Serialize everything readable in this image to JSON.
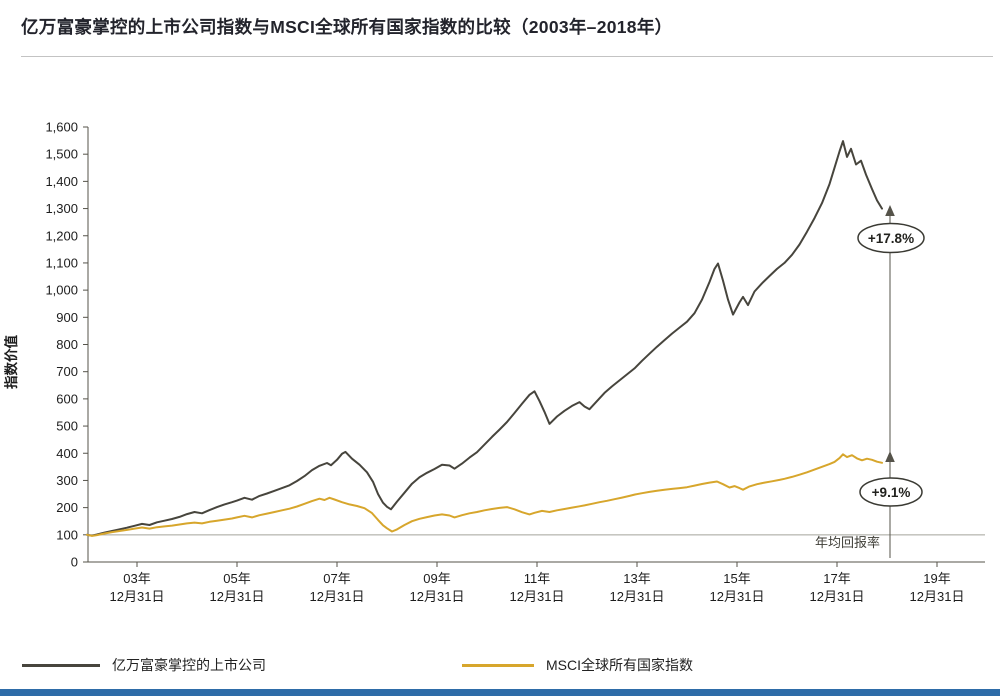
{
  "page": {
    "title": "亿万富豪掌控的上市公司指数与MSCI全球所有国家指数的比较（2003年–2018年）"
  },
  "colors": {
    "billionaire_line": "#47453d",
    "msci_line": "#d7a62c",
    "axis": "#55534a",
    "baseline_100": "#a3a39b",
    "footer_bar": "#2e6ca8",
    "annotation_border": "#3a3a33"
  },
  "chart_data": {
    "type": "line",
    "title": "亿万富豪掌控的上市公司指数与MSCI全球所有国家指数的比较（2003年–2018年）",
    "xlabel": "",
    "ylabel": "指数价值",
    "ylim": [
      0,
      1600
    ],
    "y_tick_step": 100,
    "grid": "baseline at 100 only",
    "legend_position": "bottom",
    "y_tick_labels": [
      "0",
      "100",
      "200",
      "300",
      "400",
      "500",
      "600",
      "700",
      "800",
      "900",
      "1,000",
      "1,100",
      "1,200",
      "1,300",
      "1,400",
      "1,500",
      "1,600"
    ],
    "x_ticks": [
      {
        "top": "03年",
        "bottom": "12月31日"
      },
      {
        "top": "05年",
        "bottom": "12月31日"
      },
      {
        "top": "07年",
        "bottom": "12月31日"
      },
      {
        "top": "09年",
        "bottom": "12月31日"
      },
      {
        "top": "11年",
        "bottom": "12月31日"
      },
      {
        "top": "13年",
        "bottom": "12月31日"
      },
      {
        "top": "15年",
        "bottom": "12月31日"
      },
      {
        "top": "17年",
        "bottom": "12月31日"
      },
      {
        "top": "19年",
        "bottom": "12月31日"
      }
    ],
    "annotations": {
      "billionaire_return": "+17.8%",
      "msci_return": "+9.1%",
      "axis_note": "年均回报率"
    },
    "series": [
      {
        "key": "billionaire",
        "name": "亿万富豪掌控的上市公司",
        "color": "#47453d",
        "points": [
          [
            2003.0,
            100
          ],
          [
            2003.1,
            97
          ],
          [
            2003.2,
            101
          ],
          [
            2003.35,
            108
          ],
          [
            2003.5,
            114
          ],
          [
            2003.65,
            120
          ],
          [
            2003.8,
            126
          ],
          [
            2003.95,
            133
          ],
          [
            2004.1,
            140
          ],
          [
            2004.25,
            136
          ],
          [
            2004.4,
            146
          ],
          [
            2004.55,
            152
          ],
          [
            2004.7,
            158
          ],
          [
            2004.85,
            166
          ],
          [
            2005.0,
            176
          ],
          [
            2005.15,
            184
          ],
          [
            2005.3,
            179
          ],
          [
            2005.45,
            191
          ],
          [
            2005.6,
            202
          ],
          [
            2005.75,
            212
          ],
          [
            2005.9,
            220
          ],
          [
            2006.0,
            226
          ],
          [
            2006.15,
            236
          ],
          [
            2006.3,
            229
          ],
          [
            2006.45,
            243
          ],
          [
            2006.6,
            252
          ],
          [
            2006.75,
            262
          ],
          [
            2006.9,
            272
          ],
          [
            2007.05,
            282
          ],
          [
            2007.2,
            298
          ],
          [
            2007.35,
            316
          ],
          [
            2007.5,
            338
          ],
          [
            2007.65,
            354
          ],
          [
            2007.8,
            364
          ],
          [
            2007.88,
            356
          ],
          [
            2008.0,
            376
          ],
          [
            2008.1,
            398
          ],
          [
            2008.17,
            405
          ],
          [
            2008.3,
            380
          ],
          [
            2008.45,
            358
          ],
          [
            2008.6,
            330
          ],
          [
            2008.72,
            295
          ],
          [
            2008.82,
            250
          ],
          [
            2008.92,
            218
          ],
          [
            2009.0,
            203
          ],
          [
            2009.08,
            194
          ],
          [
            2009.2,
            222
          ],
          [
            2009.35,
            255
          ],
          [
            2009.5,
            288
          ],
          [
            2009.65,
            312
          ],
          [
            2009.8,
            328
          ],
          [
            2009.95,
            342
          ],
          [
            2010.1,
            358
          ],
          [
            2010.25,
            355
          ],
          [
            2010.35,
            343
          ],
          [
            2010.5,
            362
          ],
          [
            2010.65,
            384
          ],
          [
            2010.8,
            404
          ],
          [
            2010.95,
            432
          ],
          [
            2011.1,
            460
          ],
          [
            2011.25,
            487
          ],
          [
            2011.4,
            515
          ],
          [
            2011.55,
            548
          ],
          [
            2011.7,
            582
          ],
          [
            2011.85,
            615
          ],
          [
            2011.95,
            628
          ],
          [
            2012.05,
            592
          ],
          [
            2012.15,
            552
          ],
          [
            2012.25,
            508
          ],
          [
            2012.4,
            535
          ],
          [
            2012.55,
            556
          ],
          [
            2012.7,
            574
          ],
          [
            2012.85,
            588
          ],
          [
            2012.95,
            572
          ],
          [
            2013.05,
            562
          ],
          [
            2013.2,
            592
          ],
          [
            2013.35,
            622
          ],
          [
            2013.5,
            646
          ],
          [
            2013.65,
            668
          ],
          [
            2013.8,
            690
          ],
          [
            2013.95,
            712
          ],
          [
            2014.1,
            740
          ],
          [
            2014.25,
            766
          ],
          [
            2014.4,
            792
          ],
          [
            2014.55,
            816
          ],
          [
            2014.7,
            840
          ],
          [
            2014.85,
            862
          ],
          [
            2015.0,
            884
          ],
          [
            2015.15,
            915
          ],
          [
            2015.3,
            965
          ],
          [
            2015.45,
            1030
          ],
          [
            2015.55,
            1078
          ],
          [
            2015.62,
            1098
          ],
          [
            2015.72,
            1035
          ],
          [
            2015.82,
            965
          ],
          [
            2015.92,
            910
          ],
          [
            2016.05,
            955
          ],
          [
            2016.12,
            975
          ],
          [
            2016.22,
            945
          ],
          [
            2016.35,
            995
          ],
          [
            2016.5,
            1025
          ],
          [
            2016.65,
            1052
          ],
          [
            2016.8,
            1078
          ],
          [
            2016.95,
            1100
          ],
          [
            2017.1,
            1130
          ],
          [
            2017.25,
            1168
          ],
          [
            2017.4,
            1215
          ],
          [
            2017.55,
            1265
          ],
          [
            2017.7,
            1320
          ],
          [
            2017.85,
            1390
          ],
          [
            2017.95,
            1450
          ],
          [
            2018.05,
            1510
          ],
          [
            2018.12,
            1548
          ],
          [
            2018.2,
            1490
          ],
          [
            2018.28,
            1520
          ],
          [
            2018.38,
            1462
          ],
          [
            2018.48,
            1476
          ],
          [
            2018.58,
            1425
          ],
          [
            2018.7,
            1372
          ],
          [
            2018.8,
            1330
          ],
          [
            2018.9,
            1300
          ]
        ]
      },
      {
        "key": "msci",
        "name": "MSCI全球所有国家指数",
        "color": "#d7a62c",
        "points": [
          [
            2003.0,
            100
          ],
          [
            2003.1,
            96
          ],
          [
            2003.2,
            99
          ],
          [
            2003.35,
            105
          ],
          [
            2003.5,
            110
          ],
          [
            2003.65,
            114
          ],
          [
            2003.8,
            118
          ],
          [
            2003.95,
            123
          ],
          [
            2004.1,
            127
          ],
          [
            2004.25,
            123
          ],
          [
            2004.4,
            128
          ],
          [
            2004.55,
            131
          ],
          [
            2004.7,
            134
          ],
          [
            2004.85,
            138
          ],
          [
            2005.0,
            142
          ],
          [
            2005.15,
            145
          ],
          [
            2005.3,
            142
          ],
          [
            2005.45,
            148
          ],
          [
            2005.6,
            152
          ],
          [
            2005.75,
            156
          ],
          [
            2005.9,
            160
          ],
          [
            2006.0,
            164
          ],
          [
            2006.15,
            170
          ],
          [
            2006.3,
            164
          ],
          [
            2006.45,
            172
          ],
          [
            2006.6,
            178
          ],
          [
            2006.75,
            184
          ],
          [
            2006.9,
            190
          ],
          [
            2007.05,
            196
          ],
          [
            2007.2,
            204
          ],
          [
            2007.35,
            214
          ],
          [
            2007.5,
            224
          ],
          [
            2007.65,
            233
          ],
          [
            2007.75,
            228
          ],
          [
            2007.85,
            236
          ],
          [
            2007.95,
            230
          ],
          [
            2008.1,
            220
          ],
          [
            2008.25,
            212
          ],
          [
            2008.4,
            206
          ],
          [
            2008.55,
            198
          ],
          [
            2008.7,
            180
          ],
          [
            2008.82,
            155
          ],
          [
            2008.92,
            135
          ],
          [
            2009.0,
            124
          ],
          [
            2009.1,
            112
          ],
          [
            2009.2,
            120
          ],
          [
            2009.35,
            136
          ],
          [
            2009.5,
            150
          ],
          [
            2009.65,
            159
          ],
          [
            2009.8,
            165
          ],
          [
            2009.95,
            171
          ],
          [
            2010.1,
            175
          ],
          [
            2010.25,
            171
          ],
          [
            2010.35,
            164
          ],
          [
            2010.5,
            172
          ],
          [
            2010.65,
            179
          ],
          [
            2010.8,
            184
          ],
          [
            2010.95,
            190
          ],
          [
            2011.1,
            195
          ],
          [
            2011.25,
            199
          ],
          [
            2011.4,
            202
          ],
          [
            2011.55,
            194
          ],
          [
            2011.7,
            183
          ],
          [
            2011.85,
            175
          ],
          [
            2011.95,
            181
          ],
          [
            2012.1,
            188
          ],
          [
            2012.25,
            184
          ],
          [
            2012.4,
            190
          ],
          [
            2012.55,
            195
          ],
          [
            2012.7,
            200
          ],
          [
            2012.85,
            205
          ],
          [
            2012.95,
            208
          ],
          [
            2013.1,
            214
          ],
          [
            2013.25,
            220
          ],
          [
            2013.4,
            225
          ],
          [
            2013.55,
            231
          ],
          [
            2013.7,
            237
          ],
          [
            2013.85,
            243
          ],
          [
            2013.95,
            248
          ],
          [
            2014.1,
            253
          ],
          [
            2014.25,
            258
          ],
          [
            2014.4,
            262
          ],
          [
            2014.55,
            266
          ],
          [
            2014.7,
            269
          ],
          [
            2014.85,
            272
          ],
          [
            2015.0,
            275
          ],
          [
            2015.15,
            281
          ],
          [
            2015.3,
            287
          ],
          [
            2015.45,
            292
          ],
          [
            2015.6,
            296
          ],
          [
            2015.72,
            286
          ],
          [
            2015.85,
            274
          ],
          [
            2015.95,
            279
          ],
          [
            2016.05,
            272
          ],
          [
            2016.12,
            266
          ],
          [
            2016.25,
            278
          ],
          [
            2016.4,
            286
          ],
          [
            2016.55,
            292
          ],
          [
            2016.7,
            297
          ],
          [
            2016.85,
            302
          ],
          [
            2016.95,
            306
          ],
          [
            2017.1,
            313
          ],
          [
            2017.25,
            321
          ],
          [
            2017.4,
            330
          ],
          [
            2017.55,
            340
          ],
          [
            2017.7,
            350
          ],
          [
            2017.85,
            360
          ],
          [
            2017.95,
            368
          ],
          [
            2018.05,
            382
          ],
          [
            2018.12,
            396
          ],
          [
            2018.2,
            386
          ],
          [
            2018.3,
            393
          ],
          [
            2018.4,
            381
          ],
          [
            2018.5,
            374
          ],
          [
            2018.6,
            380
          ],
          [
            2018.7,
            376
          ],
          [
            2018.8,
            369
          ],
          [
            2018.9,
            365
          ]
        ]
      }
    ]
  },
  "legend": {
    "items": [
      {
        "label": "亿万富豪掌控的上市公司"
      },
      {
        "label": "MSCI全球所有国家指数"
      }
    ]
  }
}
